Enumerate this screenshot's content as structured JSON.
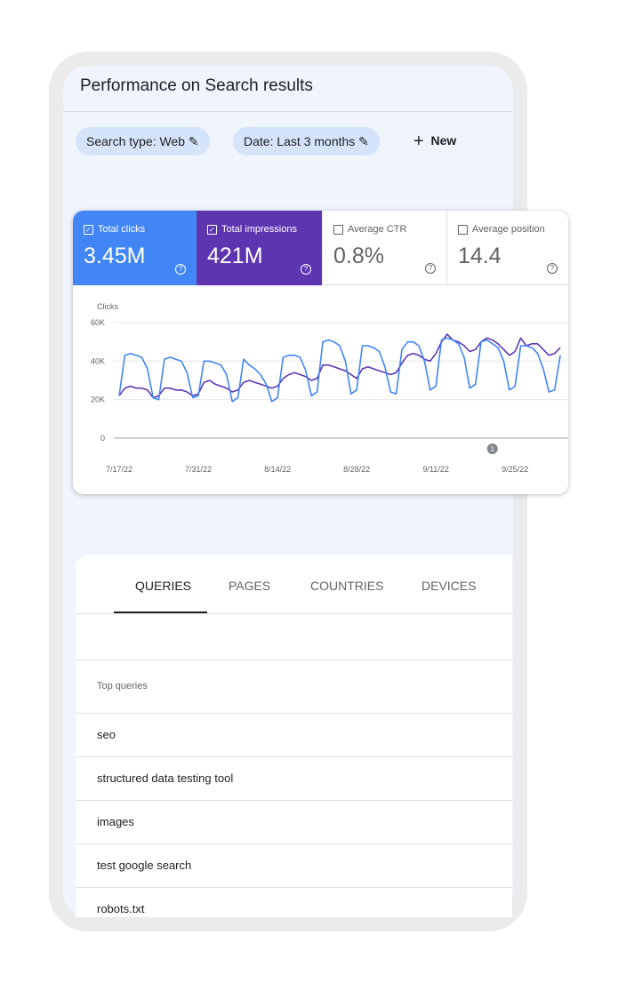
{
  "header": {
    "title": "Performance on Search results"
  },
  "filters": [
    "Search type: Web",
    "Date: Last 3 months"
  ],
  "new_button": "New",
  "metrics": [
    {
      "label": "Total clicks",
      "value": "3.45M",
      "selected": true,
      "color": "#4285f4"
    },
    {
      "label": "Total impressions",
      "value": "421M",
      "selected": true,
      "color": "#5e35b1"
    },
    {
      "label": "Average CTR",
      "value": "0.8%",
      "selected": false,
      "color": "#ffffff"
    },
    {
      "label": "Average position",
      "value": "14.4",
      "selected": false,
      "color": "#ffffff"
    }
  ],
  "chart": {
    "type": "line",
    "y_label": "Clicks",
    "x": [
      "7/17/22",
      "7/18/22",
      "7/19/22",
      "7/20/22",
      "7/21/22",
      "7/22/22",
      "7/23/22",
      "7/24/22",
      "7/25/22",
      "7/26/22",
      "7/27/22",
      "7/28/22",
      "7/29/22",
      "7/30/22",
      "7/31/22",
      "8/1/22",
      "8/2/22",
      "8/3/22",
      "8/4/22",
      "8/5/22",
      "8/6/22",
      "8/7/22",
      "8/8/22",
      "8/9/22",
      "8/10/22",
      "8/11/22",
      "8/12/22",
      "8/13/22",
      "8/14/22",
      "8/15/22",
      "8/16/22",
      "8/17/22",
      "8/18/22",
      "8/19/22",
      "8/20/22",
      "8/21/22",
      "8/22/22",
      "8/23/22",
      "8/24/22",
      "8/25/22",
      "8/26/22",
      "8/27/22",
      "8/28/22",
      "8/29/22",
      "8/30/22",
      "8/31/22",
      "9/1/22",
      "9/2/22",
      "9/3/22",
      "9/4/22",
      "9/5/22",
      "9/6/22",
      "9/7/22",
      "9/8/22",
      "9/9/22",
      "9/10/22",
      "9/11/22",
      "9/12/22",
      "9/13/22",
      "9/14/22",
      "9/15/22",
      "9/16/22",
      "9/17/22",
      "9/18/22",
      "9/19/22",
      "9/20/22",
      "9/21/22",
      "9/22/22",
      "9/23/22",
      "9/24/22",
      "9/25/22",
      "9/26/22",
      "9/27/22",
      "9/28/22",
      "9/29/22",
      "9/30/22",
      "10/1/22",
      "10/2/22",
      "10/3/22"
    ],
    "series": [
      {
        "name": "Total clicks",
        "color": "#4285f4",
        "values": [
          22000,
          43000,
          44000,
          43000,
          42000,
          36000,
          21000,
          20000,
          41000,
          42000,
          41000,
          40000,
          34000,
          21000,
          22000,
          40000,
          40000,
          39000,
          38000,
          33000,
          19000,
          21000,
          41000,
          38000,
          36000,
          33000,
          28000,
          19000,
          21000,
          42000,
          43000,
          43000,
          42000,
          35000,
          22000,
          24000,
          50000,
          51000,
          50000,
          48000,
          40000,
          23000,
          25000,
          48000,
          48000,
          47000,
          45000,
          37000,
          24000,
          23000,
          46000,
          50000,
          50000,
          48000,
          40000,
          25000,
          27000,
          51000,
          52000,
          51000,
          49000,
          42000,
          26000,
          28000,
          50000,
          51000,
          49000,
          47000,
          40000,
          25000,
          27000,
          48000,
          48000,
          47000,
          44000,
          36000,
          24000,
          25000,
          43000
        ]
      },
      {
        "name": "Total impressions",
        "color": "#5e35b1",
        "values": [
          22000,
          26000,
          27000,
          26000,
          26000,
          25000,
          21000,
          22000,
          26000,
          26000,
          25000,
          25000,
          24000,
          22000,
          23000,
          29000,
          30000,
          28000,
          27000,
          26000,
          24000,
          25000,
          29000,
          30000,
          29000,
          28000,
          27000,
          26000,
          27000,
          31000,
          33000,
          34000,
          33000,
          32000,
          30000,
          31000,
          38000,
          38000,
          37000,
          36000,
          35000,
          33000,
          31000,
          36000,
          37000,
          36000,
          35000,
          34000,
          33000,
          34000,
          39000,
          43000,
          44000,
          43000,
          41000,
          40000,
          44000,
          50000,
          54000,
          51000,
          50000,
          48000,
          45000,
          46000,
          50000,
          52000,
          51000,
          49000,
          46000,
          43000,
          45000,
          52000,
          48000,
          49000,
          49000,
          46000,
          43000,
          44000,
          47000
        ]
      }
    ],
    "ylim": [
      0,
      60000
    ],
    "yticks": [
      {
        "value": 0,
        "label": "0"
      },
      {
        "value": 20000,
        "label": "20K"
      },
      {
        "value": 40000,
        "label": "40K"
      },
      {
        "value": 60000,
        "label": "60K"
      }
    ],
    "xticks": [
      "7/17/22",
      "7/31/22",
      "8/14/22",
      "8/28/22",
      "9/11/22",
      "9/25/22"
    ],
    "grid": true,
    "annotations": [
      {
        "x": "9/21/22",
        "label": "1"
      }
    ]
  },
  "tabs": {
    "items": [
      "QUERIES",
      "PAGES",
      "COUNTRIES",
      "DEVICES"
    ],
    "selected": 0
  },
  "table": {
    "header": "Top queries",
    "rows": [
      "seo",
      "structured data testing tool",
      "images",
      "test google search",
      "robots.txt"
    ]
  }
}
